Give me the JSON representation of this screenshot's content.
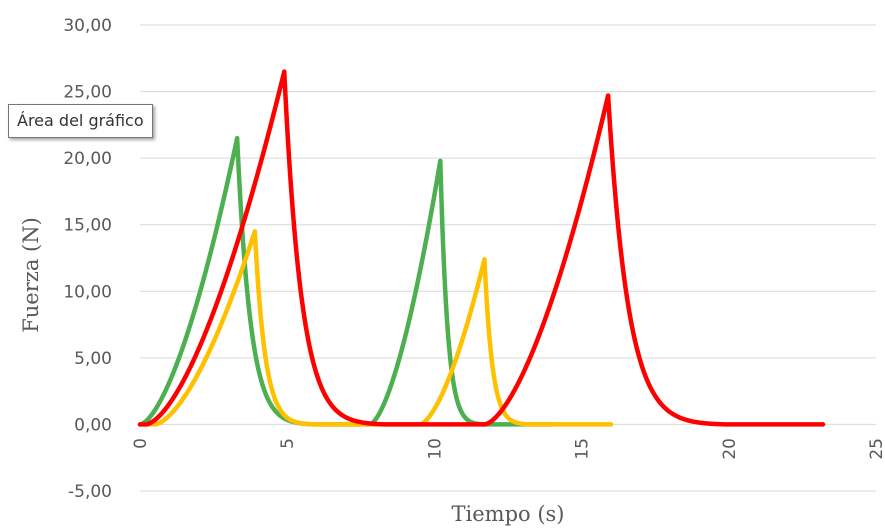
{
  "tooltip": "Área del gráfico",
  "chart_data": {
    "type": "line",
    "title": "",
    "xlabel": "Tiempo (s)",
    "ylabel": "Fuerza (N)",
    "xlim": [
      0,
      25
    ],
    "ylim": [
      -5,
      30
    ],
    "x_ticks": [
      "0",
      "5",
      "10",
      "15",
      "20",
      "25"
    ],
    "y_ticks": [
      "-5,00",
      "0,00",
      "5,00",
      "10,00",
      "15,00",
      "20,00",
      "25,00",
      "30,00"
    ],
    "grid": true,
    "legend": "none",
    "series": [
      {
        "color": "#4CAF50",
        "pulses": [
          {
            "start": 0,
            "peak_t": 3.3,
            "peak": 21.5,
            "end": 6.0
          },
          {
            "start": 7.8,
            "peak_t": 10.2,
            "peak": 19.8,
            "end": 11.7
          }
        ],
        "x_end": 14.0
      },
      {
        "color": "#FFC000",
        "pulses": [
          {
            "start": 0.5,
            "peak_t": 3.9,
            "peak": 14.5,
            "end": 6.0
          },
          {
            "start": 9.5,
            "peak_t": 11.7,
            "peak": 12.4,
            "end": 13.3
          }
        ],
        "x_end": 16.0
      },
      {
        "color": "#FF0000",
        "pulses": [
          {
            "start": 0.2,
            "peak_t": 4.9,
            "peak": 26.5,
            "end": 8.4
          },
          {
            "start": 11.7,
            "peak_t": 15.9,
            "peak": 24.7,
            "end": 20.0
          }
        ],
        "x_end": 23.2
      }
    ]
  }
}
